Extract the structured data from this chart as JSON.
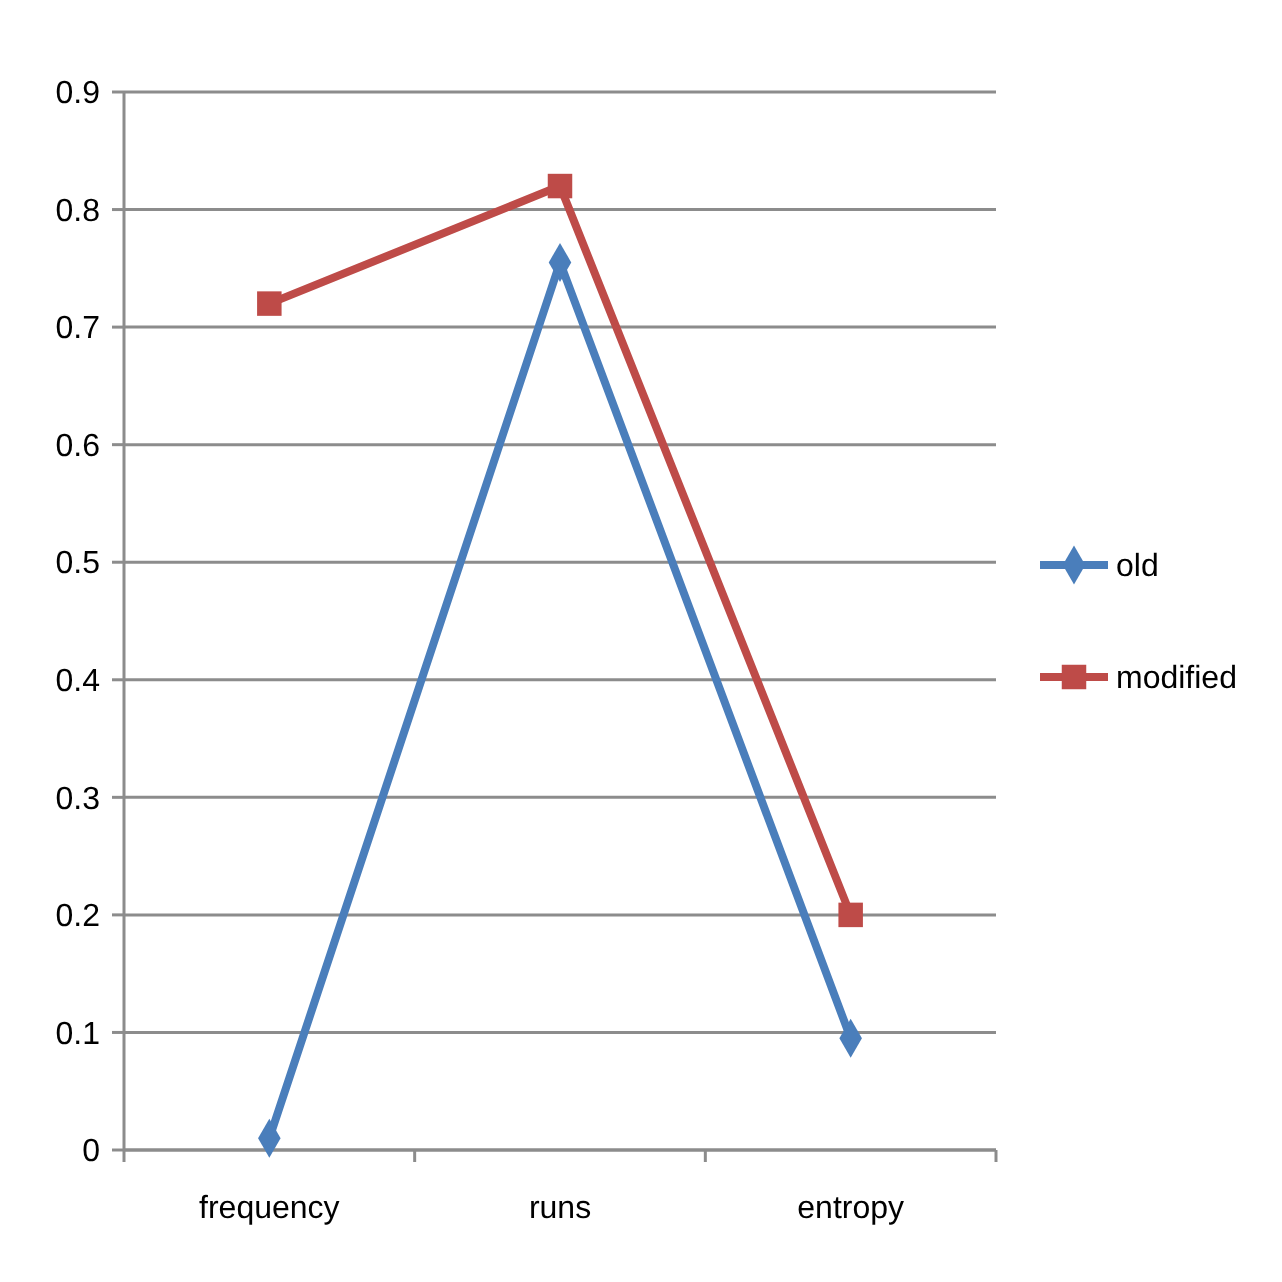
{
  "chart_data": {
    "type": "line",
    "categories": [
      "frequency",
      "runs",
      "entropy"
    ],
    "series": [
      {
        "name": "old",
        "color": "#4a7ebb",
        "marker": "diamond",
        "values": [
          0.01,
          0.755,
          0.095
        ]
      },
      {
        "name": "modified",
        "color": "#be4b48",
        "marker": "square",
        "values": [
          0.72,
          0.82,
          0.2
        ]
      }
    ],
    "ylim": [
      0,
      0.9
    ],
    "yticks": [
      0,
      0.1,
      0.2,
      0.3,
      0.4,
      0.5,
      0.6,
      0.7,
      0.8,
      0.9
    ],
    "grid": "y",
    "legend": "right"
  }
}
